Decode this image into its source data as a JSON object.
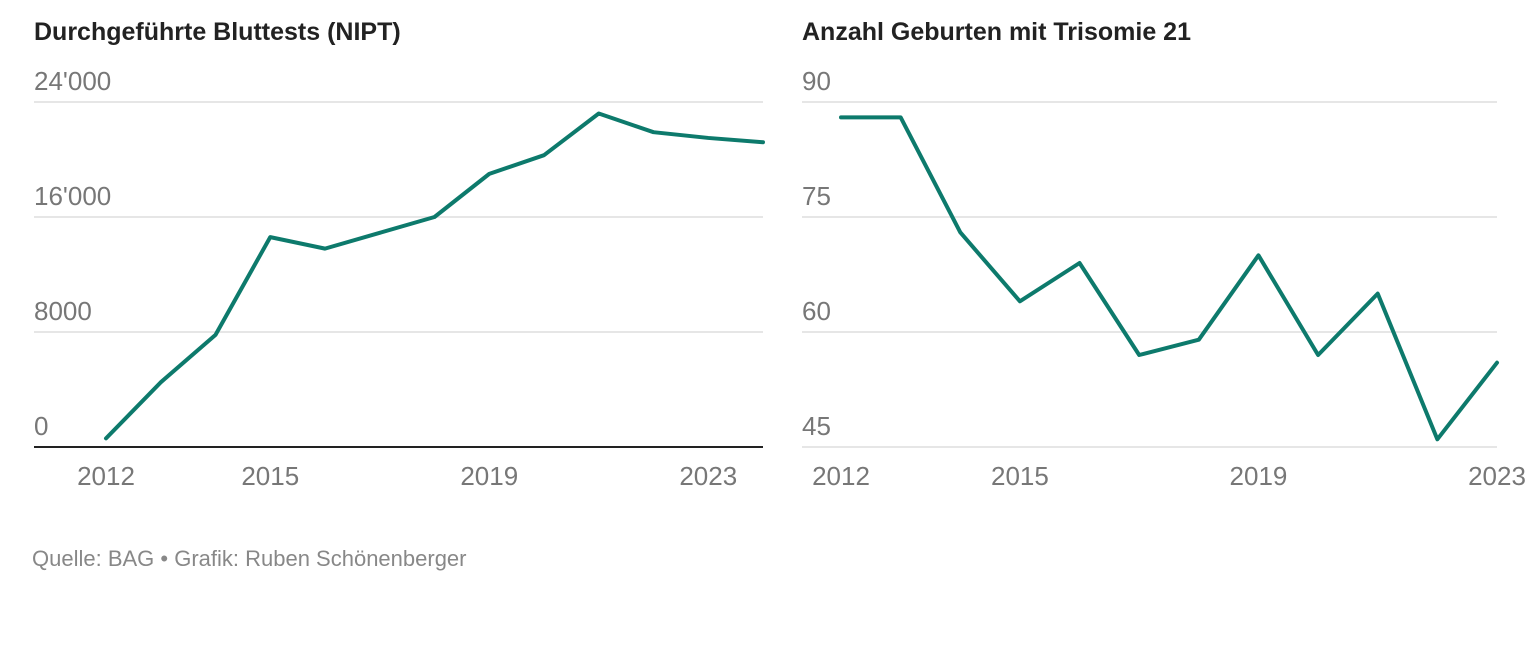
{
  "chart_data": [
    {
      "type": "line",
      "title": "Durchgeführte Bluttests (NIPT)",
      "xlabel": "",
      "ylabel": "",
      "x": [
        2012,
        2013,
        2014,
        2015,
        2016,
        2017,
        2018,
        2019,
        2020,
        2021,
        2022,
        2023,
        2024
      ],
      "series": [
        {
          "values": [
            600,
            4500,
            7800,
            14600,
            13800,
            14900,
            16000,
            19000,
            20300,
            23200,
            21900,
            21500,
            21200
          ]
        }
      ],
      "ylim": [
        0,
        24000
      ],
      "yticks": [
        0,
        8000,
        16000,
        24000
      ],
      "ytick_labels": [
        "0",
        "8000",
        "16'000",
        "24'000"
      ],
      "xticks": [
        2012,
        2015,
        2019,
        2023
      ],
      "xtick_labels": [
        "2012",
        "2015",
        "2019",
        "2023"
      ],
      "grid": true,
      "color": "#0d7a6c"
    },
    {
      "type": "line",
      "title": "Anzahl Geburten mit Trisomie 21",
      "xlabel": "",
      "ylabel": "",
      "x": [
        2012,
        2013,
        2014,
        2015,
        2016,
        2017,
        2018,
        2019,
        2020,
        2021,
        2022,
        2023
      ],
      "series": [
        {
          "values": [
            88,
            88,
            73,
            64,
            69,
            57,
            59,
            70,
            57,
            65,
            46,
            56
          ]
        }
      ],
      "ylim": [
        45,
        90
      ],
      "yticks": [
        45,
        60,
        75,
        90
      ],
      "ytick_labels": [
        "45",
        "60",
        "75",
        "90"
      ],
      "xticks": [
        2012,
        2015,
        2019,
        2023
      ],
      "xtick_labels": [
        "2012",
        "2015",
        "2019",
        "2023"
      ],
      "grid": true,
      "color": "#0d7a6c"
    }
  ],
  "footer": {
    "source": "Quelle: BAG • Grafik: Ruben Schönenberger"
  }
}
